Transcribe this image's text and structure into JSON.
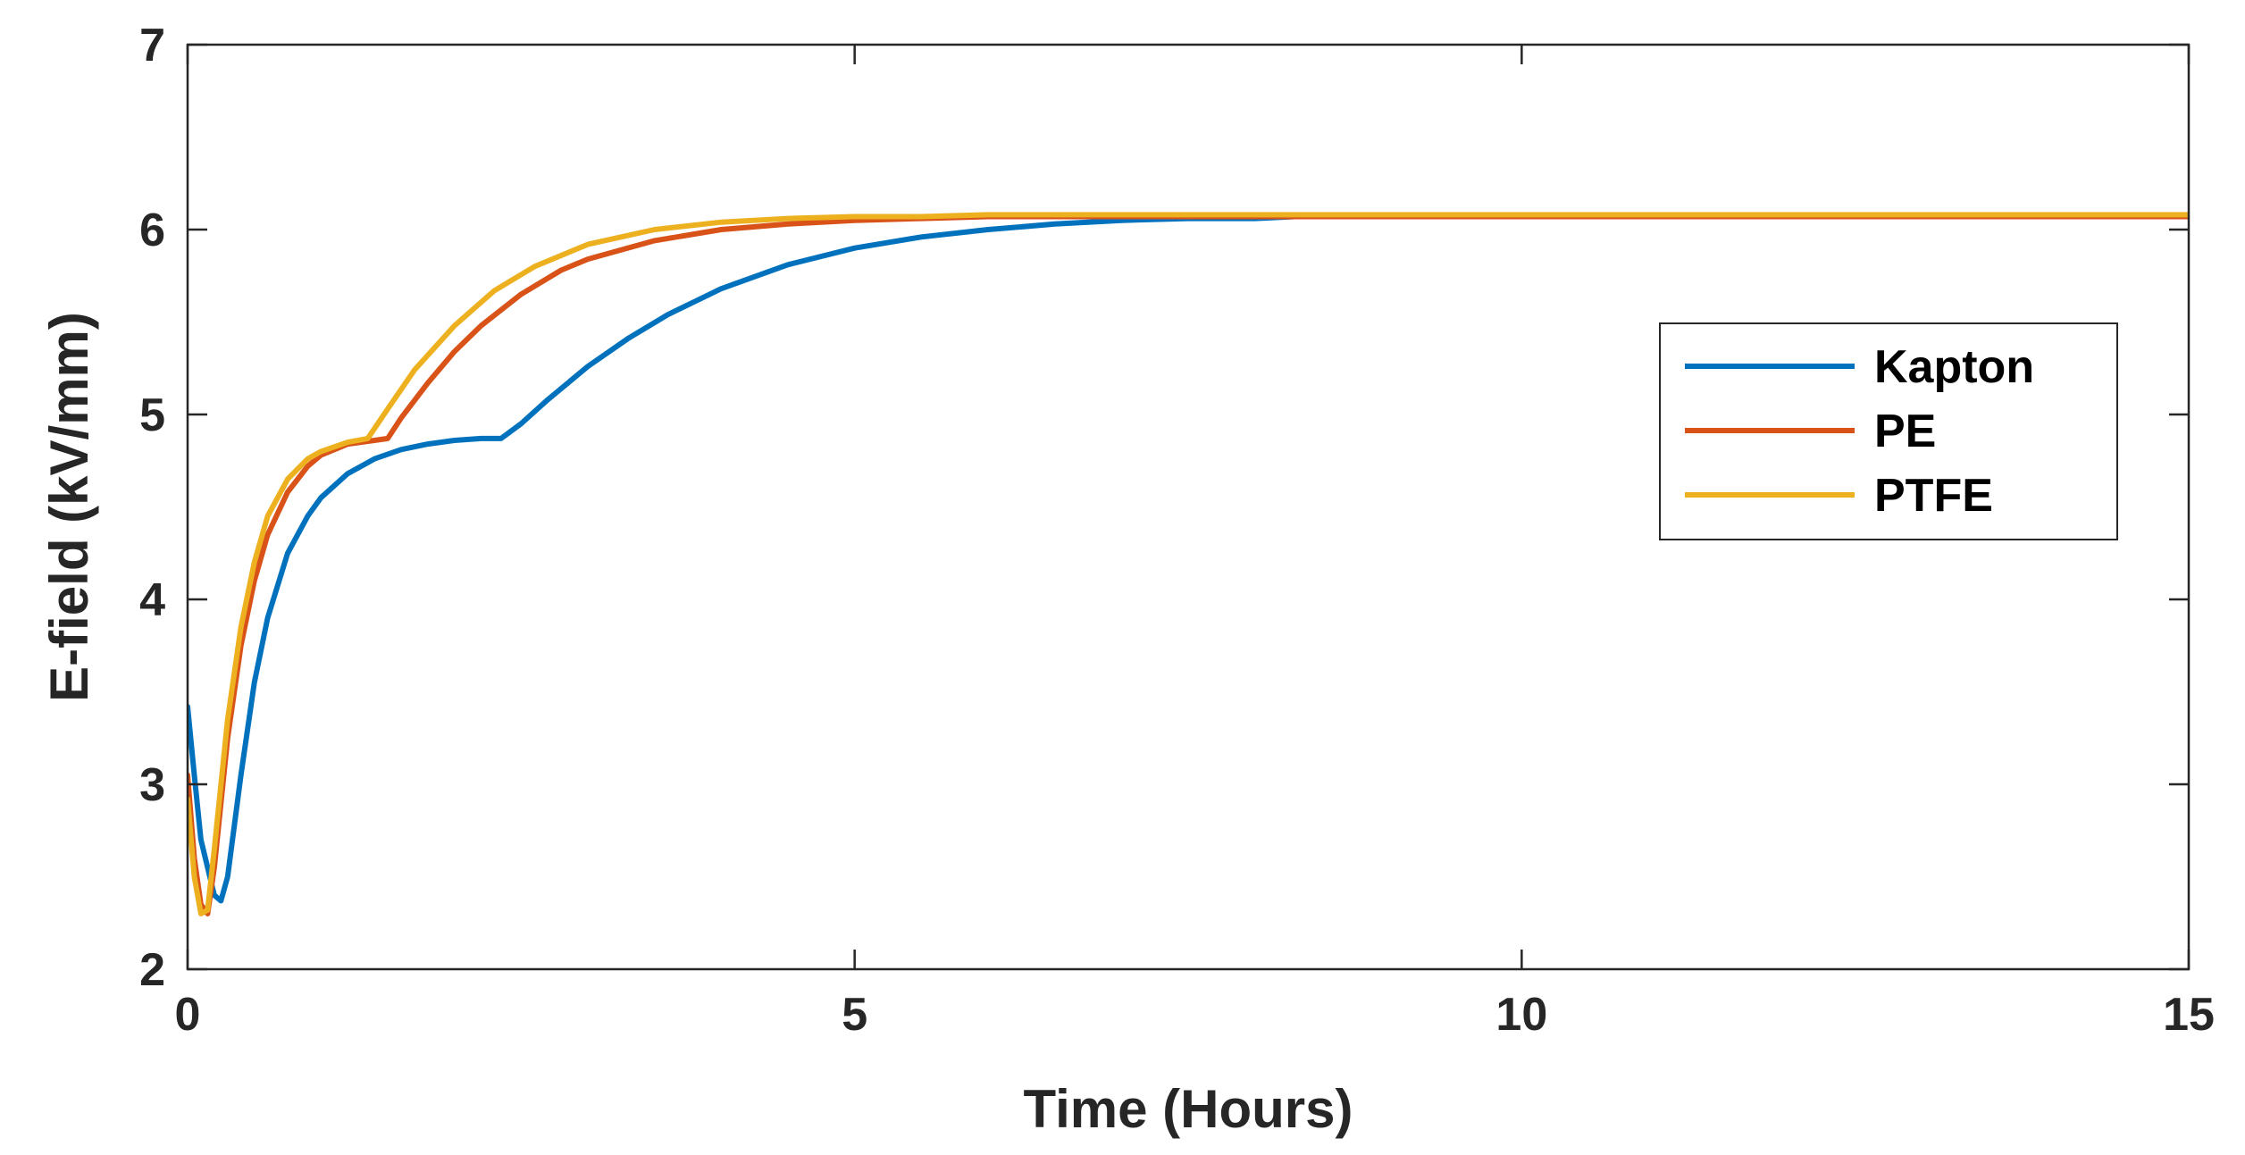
{
  "chart_data": {
    "type": "line",
    "title": "",
    "xlabel": "Time (Hours)",
    "ylabel": "E-field (kV/mm)",
    "xlim": [
      0,
      15
    ],
    "ylim": [
      2,
      7
    ],
    "xticks": [
      0,
      5,
      10,
      15
    ],
    "yticks": [
      2,
      3,
      4,
      5,
      6,
      7
    ],
    "grid": false,
    "legend_position": "right",
    "colors": {
      "axis": "#262626",
      "background": "#ffffff"
    },
    "series": [
      {
        "name": "Kapton",
        "color": "#0072BD",
        "x": [
          0,
          0.05,
          0.1,
          0.15,
          0.2,
          0.25,
          0.3,
          0.4,
          0.5,
          0.6,
          0.75,
          0.9,
          1.0,
          1.2,
          1.4,
          1.6,
          1.8,
          2.0,
          2.2,
          2.35,
          2.5,
          2.7,
          3.0,
          3.3,
          3.6,
          4.0,
          4.5,
          5.0,
          5.5,
          6.0,
          6.5,
          7.0,
          7.5,
          8.0,
          8.3
        ],
        "y": [
          3.42,
          3.05,
          2.7,
          2.55,
          2.4,
          2.37,
          2.5,
          3.05,
          3.55,
          3.9,
          4.25,
          4.45,
          4.55,
          4.68,
          4.76,
          4.81,
          4.84,
          4.86,
          4.87,
          4.87,
          4.95,
          5.08,
          5.26,
          5.41,
          5.54,
          5.68,
          5.81,
          5.9,
          5.96,
          6.0,
          6.03,
          6.05,
          6.06,
          6.06,
          6.07
        ]
      },
      {
        "name": "PE",
        "color": "#D95319",
        "x": [
          0,
          0.05,
          0.1,
          0.15,
          0.2,
          0.3,
          0.4,
          0.5,
          0.6,
          0.75,
          0.9,
          1.0,
          1.2,
          1.4,
          1.5,
          1.6,
          1.8,
          2.0,
          2.2,
          2.5,
          2.8,
          3.0,
          3.5,
          4.0,
          4.5,
          5.0,
          5.5,
          6.0,
          6.5,
          7.0,
          8.0,
          10.0,
          12.5,
          15.0
        ],
        "y": [
          3.05,
          2.6,
          2.35,
          2.3,
          2.55,
          3.25,
          3.75,
          4.1,
          4.35,
          4.58,
          4.72,
          4.78,
          4.84,
          4.86,
          4.87,
          4.98,
          5.17,
          5.34,
          5.48,
          5.65,
          5.78,
          5.84,
          5.94,
          6.0,
          6.03,
          6.05,
          6.06,
          6.07,
          6.07,
          6.07,
          6.07,
          6.07,
          6.07,
          6.07
        ]
      },
      {
        "name": "PTFE",
        "color": "#EDB120",
        "x": [
          0,
          0.05,
          0.1,
          0.15,
          0.2,
          0.3,
          0.4,
          0.5,
          0.6,
          0.75,
          0.9,
          1.0,
          1.2,
          1.35,
          1.5,
          1.7,
          2.0,
          2.3,
          2.6,
          3.0,
          3.5,
          4.0,
          4.5,
          5.0,
          5.5,
          6.0,
          7.0,
          8.0,
          10.0,
          12.5,
          15.0
        ],
        "y": [
          2.92,
          2.5,
          2.3,
          2.32,
          2.65,
          3.35,
          3.85,
          4.2,
          4.45,
          4.65,
          4.76,
          4.8,
          4.85,
          4.87,
          5.03,
          5.24,
          5.48,
          5.67,
          5.8,
          5.92,
          6.0,
          6.04,
          6.06,
          6.07,
          6.07,
          6.08,
          6.08,
          6.08,
          6.08,
          6.08,
          6.08
        ]
      }
    ]
  }
}
